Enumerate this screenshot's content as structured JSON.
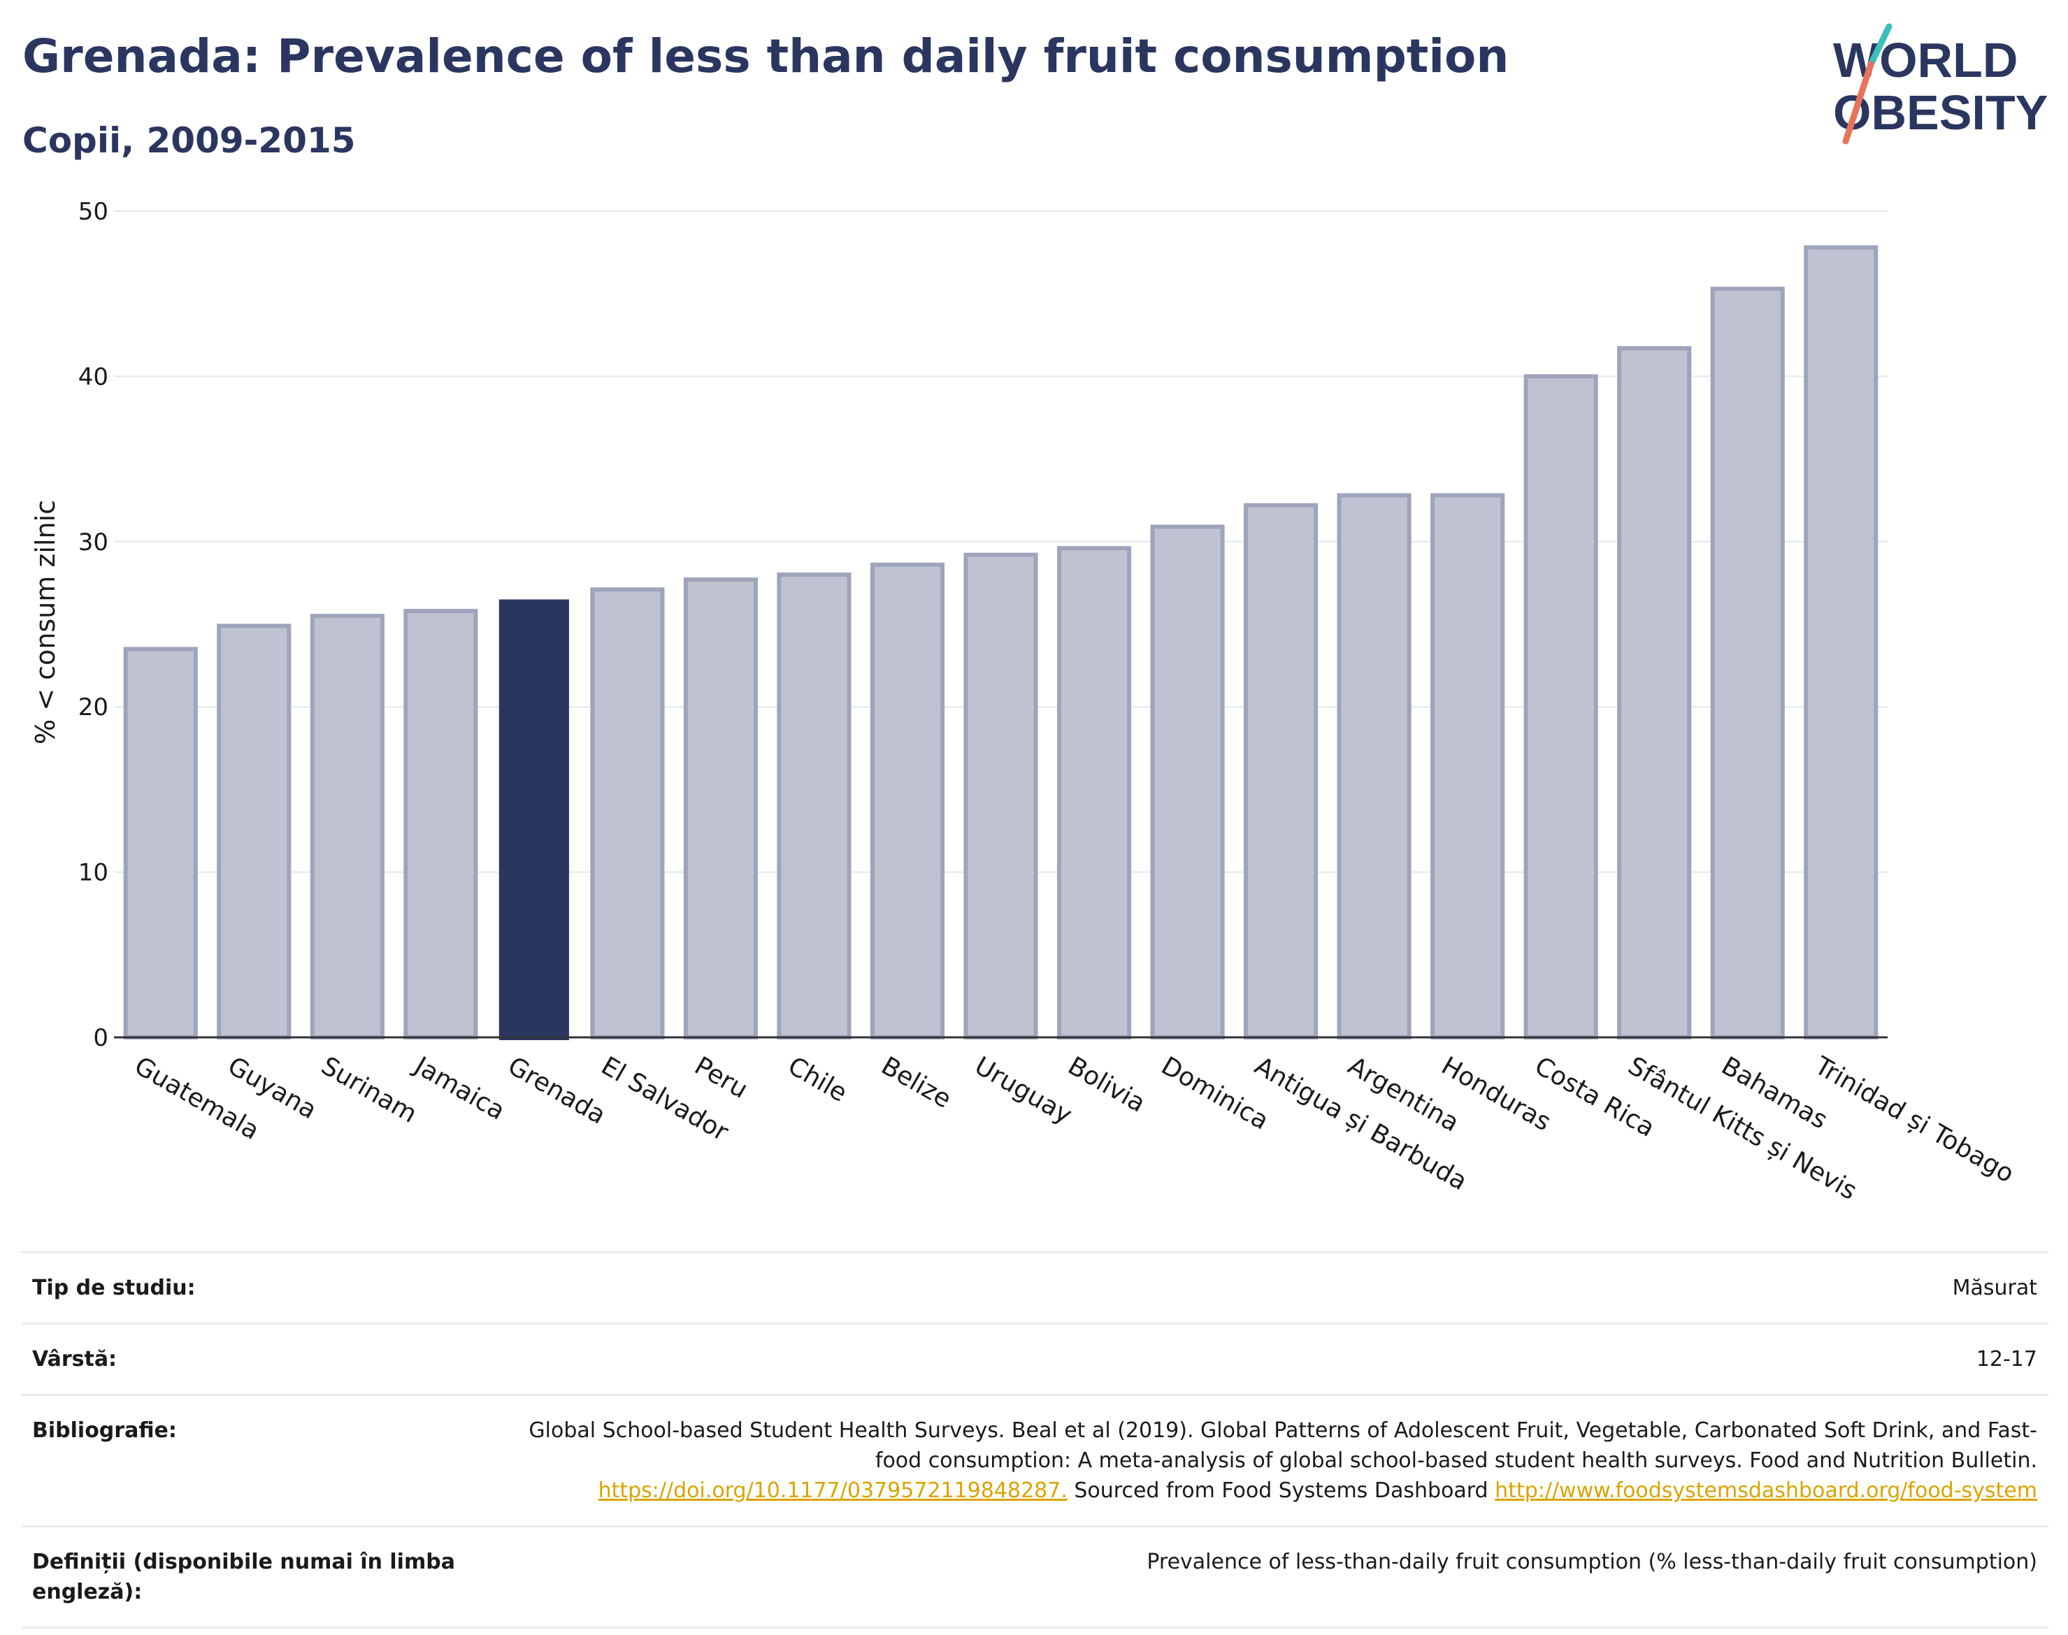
{
  "header": {
    "title": "Grenada: Prevalence of less than daily fruit consumption",
    "subtitle": "Copii, 2009-2015"
  },
  "logo": {
    "line1": "WORLD",
    "line2": "OBESITY"
  },
  "colors": {
    "highlight": "#2b3660",
    "bar": "#bfc3d1",
    "bar_stroke": "#9ea4bb",
    "grid": "#e4e7ee",
    "link": "#d9a400"
  },
  "chart_data": {
    "type": "bar",
    "categories": [
      "Guatemala",
      "Guyana",
      "Surinam",
      "Jamaica",
      "Grenada",
      "El Salvador",
      "Peru",
      "Chile",
      "Belize",
      "Uruguay",
      "Bolivia",
      "Dominica",
      "Antigua și Barbuda",
      "Argentina",
      "Honduras",
      "Costa Rica",
      "Sfântul Kitts și Nevis",
      "Bahamas",
      "Trinidad și Tobago"
    ],
    "values": [
      23.5,
      24.9,
      25.5,
      25.8,
      26.5,
      27.1,
      27.7,
      28.0,
      28.6,
      29.2,
      29.6,
      30.9,
      32.2,
      32.8,
      32.8,
      40.0,
      41.7,
      45.3,
      47.8
    ],
    "highlight": "Grenada",
    "ylabel": "% < consum zilnic",
    "ylim": [
      0,
      50
    ],
    "yticks": [
      0,
      10,
      20,
      30,
      40,
      50
    ],
    "grid": true
  },
  "meta": {
    "study_type_label": "Tip de studiu:",
    "study_type_value": "Măsurat",
    "age_label": "Vârstă:",
    "age_value": "12-17",
    "biblio_label": "Bibliografie:",
    "biblio_text_1": "Global School-based Student Health Surveys. Beal et al (2019). Global Patterns of Adolescent Fruit, Vegetable, Carbonated Soft Drink, and Fast-food consumption: A meta-analysis of global school-based student health surveys. Food and Nutrition Bulletin.",
    "biblio_link_1": "https://doi.org/10.1177/0379572119848287.",
    "biblio_text_2": "Sourced from Food Systems Dashboard",
    "biblio_link_2": "http://www.foodsystemsdashboard.org/food-system",
    "definitions_label": "Definiții (disponibile numai în limba engleză):",
    "definitions_value": "Prevalence of less-than-daily fruit consumption (% less-than-daily fruit consumption)"
  }
}
